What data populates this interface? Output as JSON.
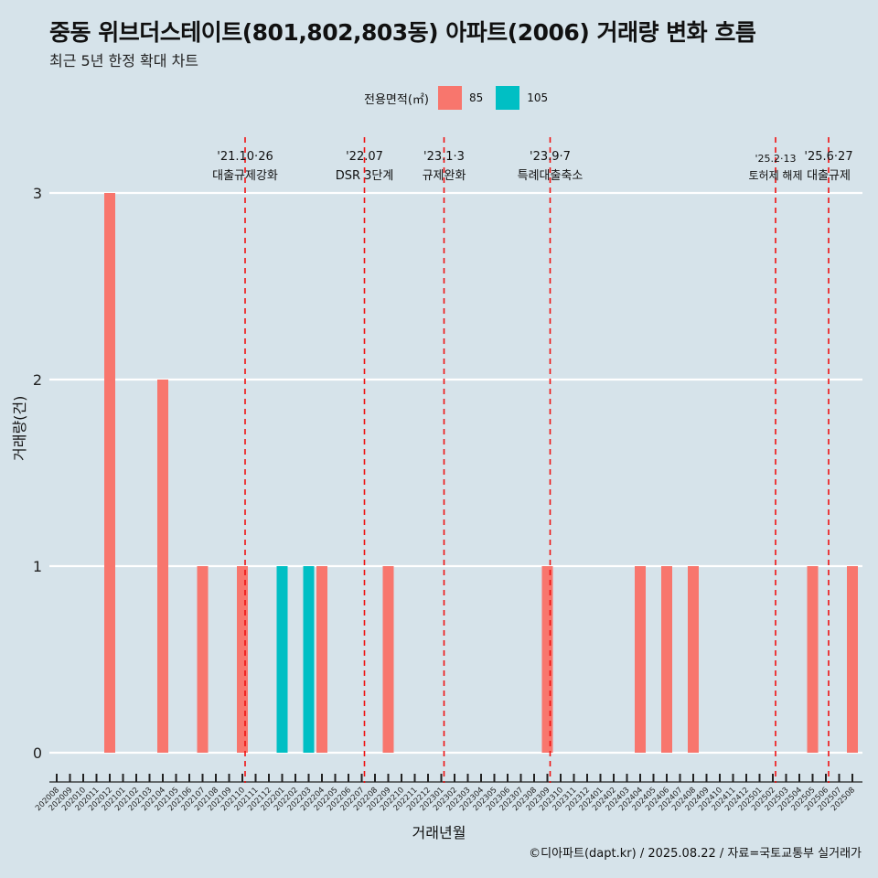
{
  "title": "중동 위브더스테이트(801,802,803동) 아파트(2006) 거래량 변화 흐름",
  "subtitle": "최근 5년 한정 확대 차트",
  "legend": {
    "title": "전용면적(㎡)",
    "items": [
      {
        "label": "85",
        "color": "#f8766d"
      },
      {
        "label": "105",
        "color": "#00bfc4"
      }
    ]
  },
  "caption": "©디아파트(dapt.kr) / 2025.08.22 / 자료=국토교통부 실거래가",
  "chart_data": {
    "type": "bar",
    "title": "중동 위브더스테이트(801,802,803동) 아파트(2006) 거래량 변화 흐름",
    "xlabel": "거래년월",
    "ylabel": "거래량(건)",
    "ylim": [
      0,
      3
    ],
    "yticks": [
      0,
      1,
      2,
      3
    ],
    "categories": [
      "202008",
      "202009",
      "202010",
      "202011",
      "202012",
      "202101",
      "202102",
      "202103",
      "202104",
      "202105",
      "202106",
      "202107",
      "202108",
      "202109",
      "202110",
      "202111",
      "202112",
      "202201",
      "202202",
      "202203",
      "202204",
      "202205",
      "202206",
      "202207",
      "202208",
      "202209",
      "202210",
      "202211",
      "202212",
      "202301",
      "202302",
      "202303",
      "202304",
      "202305",
      "202306",
      "202307",
      "202308",
      "202309",
      "202310",
      "202311",
      "202312",
      "202401",
      "202402",
      "202403",
      "202404",
      "202405",
      "202406",
      "202407",
      "202408",
      "202409",
      "202410",
      "202411",
      "202412",
      "202501",
      "202502",
      "202503",
      "202504",
      "202505",
      "202506",
      "202507",
      "202508"
    ],
    "series": [
      {
        "name": "85",
        "color": "#f8766d",
        "values": [
          0,
          0,
          0,
          0,
          3,
          0,
          0,
          0,
          2,
          0,
          0,
          1,
          0,
          0,
          1,
          0,
          0,
          0,
          0,
          0,
          1,
          0,
          0,
          0,
          0,
          1,
          0,
          0,
          0,
          0,
          0,
          0,
          0,
          0,
          0,
          0,
          0,
          1,
          0,
          0,
          0,
          0,
          0,
          0,
          1,
          0,
          1,
          0,
          1,
          0,
          0,
          0,
          0,
          0,
          0,
          0,
          0,
          1,
          0,
          0,
          1
        ]
      },
      {
        "name": "105",
        "color": "#00bfc4",
        "values": [
          0,
          0,
          0,
          0,
          0,
          0,
          0,
          0,
          0,
          0,
          0,
          0,
          0,
          0,
          0,
          0,
          0,
          1,
          0,
          1,
          0,
          0,
          0,
          0,
          0,
          0,
          0,
          0,
          0,
          0,
          0,
          0,
          0,
          0,
          0,
          0,
          0,
          0,
          0,
          0,
          0,
          0,
          0,
          0,
          0,
          0,
          0,
          0,
          0,
          0,
          0,
          0,
          0,
          0,
          0,
          0,
          0,
          0,
          0,
          0,
          0
        ]
      }
    ],
    "events": [
      {
        "date": "'21.10·26",
        "label": "대출규제강화",
        "month": "202110"
      },
      {
        "date": "'22.07",
        "label": "DSR 3단계",
        "month": "202207"
      },
      {
        "date": "'23.1·3",
        "label": "규제완화",
        "month": "202301"
      },
      {
        "date": "'23.9·7",
        "label": "특례대출축소",
        "month": "202309"
      },
      {
        "date": "'25.2·13",
        "label": "토허제 해제",
        "month": "202502"
      },
      {
        "date": "'25.6·27",
        "label": "대출규제",
        "month": "202506"
      }
    ]
  }
}
